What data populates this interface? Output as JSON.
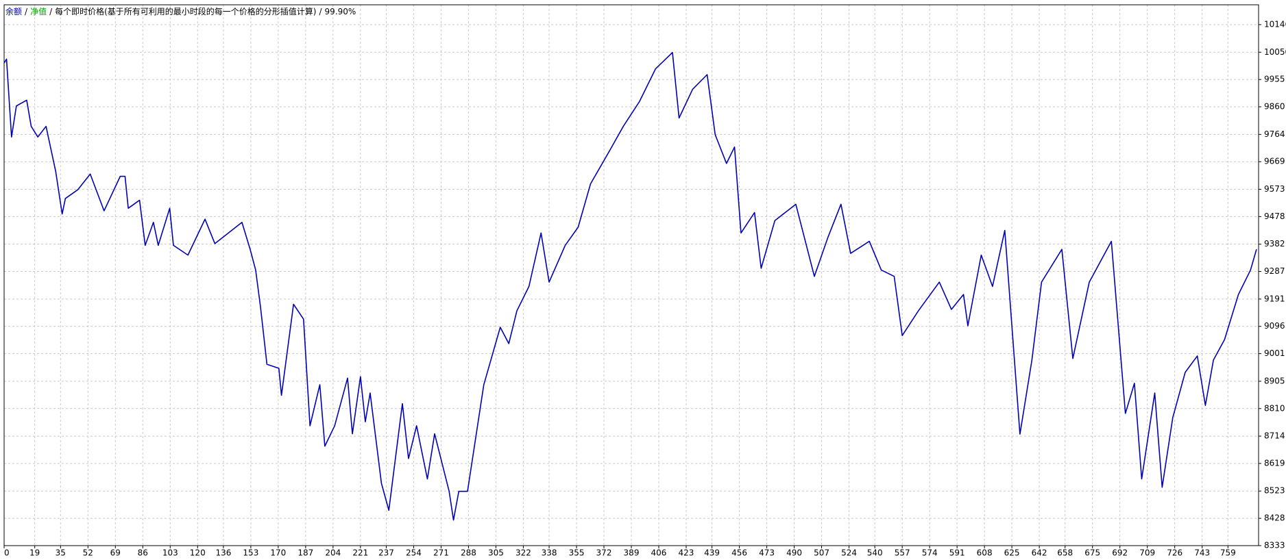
{
  "chart_data": {
    "type": "line",
    "separator": "/",
    "equity_label": "净值",
    "equity_color": "#00a000",
    "model": "每个即时价格(基于所有可利用的最小时段的每一个价格的分形插值计算)",
    "quality": "99.90%",
    "series": [
      {
        "name": "余额",
        "color": "#0000b4",
        "x": [
          0,
          1.5,
          4.6,
          7.6,
          14,
          16.8,
          20.9,
          26,
          32,
          36,
          38,
          45.8,
          53.4,
          62,
          72,
          75,
          77,
          84,
          87.5,
          92.6,
          95.6,
          102.7,
          105,
          114,
          124.6,
          130.7,
          147.5,
          152.6,
          156,
          159,
          163,
          170.4,
          172,
          179.5,
          185.7,
          189.7,
          195.8,
          198.9,
          205,
          213,
          216,
          221,
          224,
          227,
          234,
          238.6,
          247,
          250.8,
          255.8,
          262.5,
          267,
          276,
          278.7,
          282,
          287.4,
          297.5,
          307.7,
          313,
          318,
          325.5,
          333,
          338,
          348,
          356,
          363.7,
          376,
          384,
          394,
          404,
          414.5,
          418.6,
          427,
          436,
          441,
          448,
          453,
          457,
          465.4,
          469.5,
          478,
          491,
          502.5,
          511,
          519,
          525,
          536.6,
          544,
          552,
          557,
          567,
          580,
          587.5,
          595,
          597.7,
          606,
          613,
          620.6,
          630,
          637.4,
          643.4,
          656,
          662.8,
          673,
          686.7,
          695.4,
          701,
          705.5,
          713.6,
          718.2,
          724.8,
          732.5,
          740,
          745,
          750,
          756.9,
          765.5,
          773,
          776.7
        ],
        "values": [
          10012,
          10026,
          9755,
          9863,
          9883,
          9792,
          9755,
          9792,
          9635,
          9487,
          9541,
          9572,
          9626,
          9498,
          9618,
          9618,
          9507,
          9535,
          9378,
          9458,
          9378,
          9507,
          9378,
          9344,
          9469,
          9384,
          9458,
          9364,
          9292,
          9164,
          8964,
          8950,
          8856,
          9173,
          9121,
          8750,
          8893,
          8679,
          8750,
          8916,
          8722,
          8921,
          8764,
          8864,
          8550,
          8456,
          8827,
          8636,
          8750,
          8565,
          8722,
          8522,
          8422,
          8522,
          8522,
          8893,
          9093,
          9036,
          9150,
          9235,
          9421,
          9250,
          9378,
          9441,
          9592,
          9712,
          9792,
          9878,
          9992,
          10049,
          9821,
          9921,
          9972,
          9763,
          9663,
          9720,
          9421,
          9492,
          9298,
          9464,
          9521,
          9270,
          9407,
          9521,
          9350,
          9392,
          9292,
          9270,
          9064,
          9150,
          9250,
          9155,
          9207,
          9098,
          9344,
          9235,
          9430,
          8721,
          8978,
          9250,
          9364,
          8984,
          9250,
          9392,
          8793,
          8898,
          8565,
          8864,
          8536,
          8779,
          8936,
          8993,
          8821,
          8979,
          9050,
          9207,
          9292,
          9364
        ]
      }
    ],
    "xlim": [
      0,
      778
    ],
    "ylim": [
      8333,
      10215
    ],
    "xticks": [
      0,
      19,
      35,
      52,
      69,
      86,
      103,
      120,
      136,
      153,
      170,
      187,
      204,
      221,
      237,
      254,
      271,
      288,
      305,
      322,
      338,
      355,
      372,
      389,
      406,
      423,
      439,
      456,
      473,
      490,
      507,
      524,
      540,
      557,
      574,
      591,
      608,
      625,
      642,
      658,
      675,
      692,
      709,
      726,
      743,
      759
    ],
    "yticks": [
      8333,
      8428,
      8523,
      8619,
      8714,
      8810,
      8905,
      9001,
      9096,
      9191,
      9287,
      9382,
      9478,
      9573,
      9669,
      9764,
      9860,
      9955,
      10050,
      10146
    ],
    "grid": true
  }
}
